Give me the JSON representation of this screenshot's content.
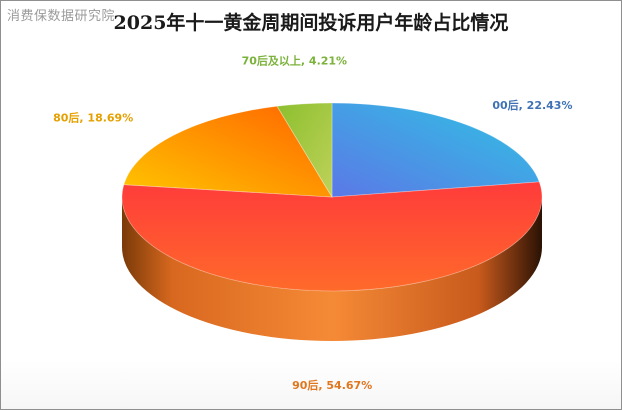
{
  "watermark": "消费保数据研究院",
  "chart_data": {
    "type": "pie",
    "title": "2025年十一黄金周期间投诉用户年龄占比情况",
    "series": [
      {
        "name": "00后",
        "value": 22.43,
        "label": "00后, 22.43%",
        "color": "#4a95dc",
        "label_color": "#3f72b5"
      },
      {
        "name": "90后",
        "value": 54.67,
        "label": "90后, 54.67%",
        "color": "#f0542e",
        "label_color": "#e0761e"
      },
      {
        "name": "80后",
        "value": 18.69,
        "label": "80后, 18.69%",
        "color": "#f7a81a",
        "label_color": "#e5a000"
      },
      {
        "name": "70后及以上",
        "value": 4.21,
        "label": "70后及以上, 4.21%",
        "color": "#a4c93c",
        "label_color": "#7ab23a"
      }
    ]
  }
}
